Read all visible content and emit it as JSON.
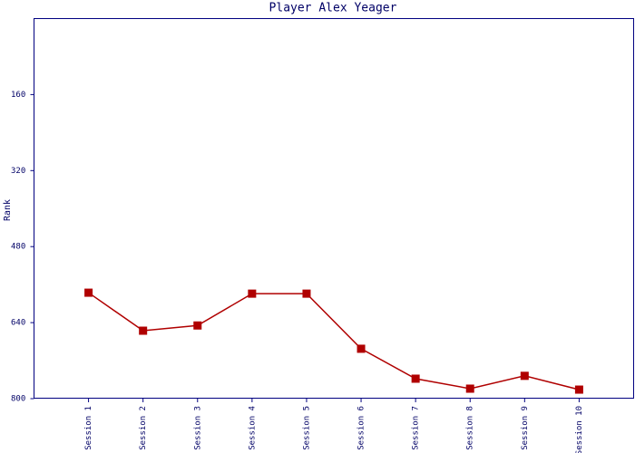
{
  "chart_data": {
    "type": "line",
    "title": "Player Alex Yeager",
    "y_label": "Rank",
    "categories": [
      "Session 1",
      "Session 2",
      "Session 3",
      "Session 4",
      "Session 5",
      "Session 6",
      "Session 7",
      "Session 8",
      "Session 9",
      "Session 10"
    ],
    "series": [
      {
        "name": "Rank",
        "color": "#b00000",
        "values": [
          577,
          657,
          646,
          579,
          579,
          695,
          758,
          779,
          752,
          781
        ]
      }
    ],
    "ylim": [
      800,
      0
    ],
    "yticks": [
      160,
      320,
      480,
      640,
      800
    ],
    "grid": false
  }
}
